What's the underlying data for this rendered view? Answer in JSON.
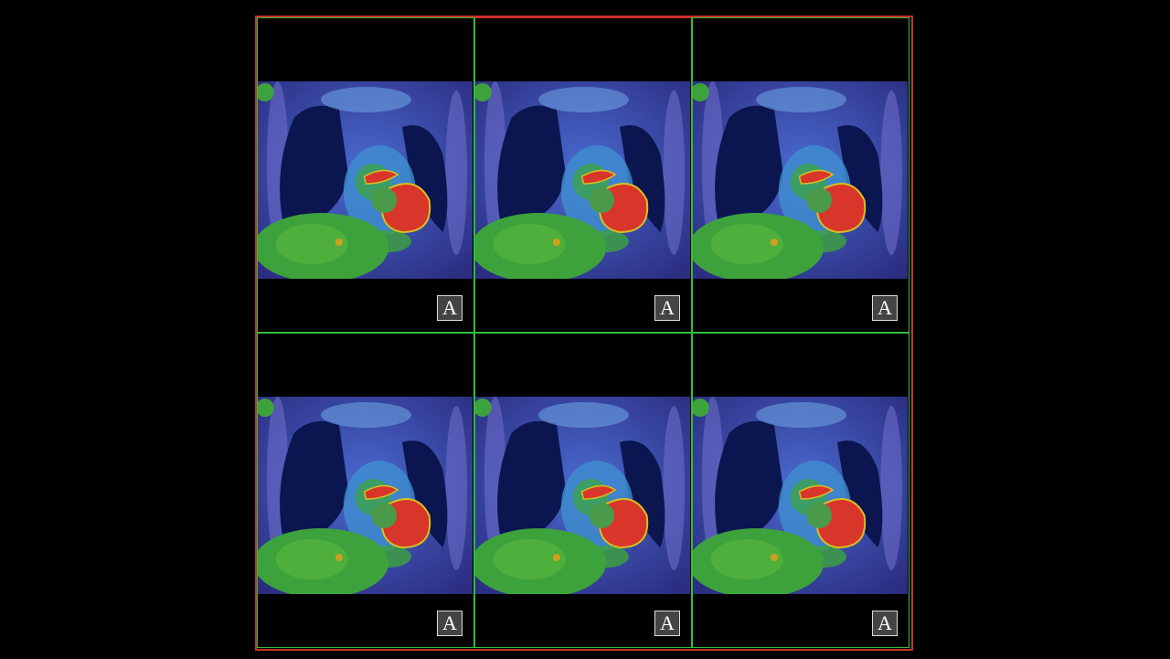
{
  "viewports": [
    {
      "orientation": "A"
    },
    {
      "orientation": "A"
    },
    {
      "orientation": "A"
    },
    {
      "orientation": "A"
    },
    {
      "orientation": "A"
    },
    {
      "orientation": "A"
    }
  ]
}
